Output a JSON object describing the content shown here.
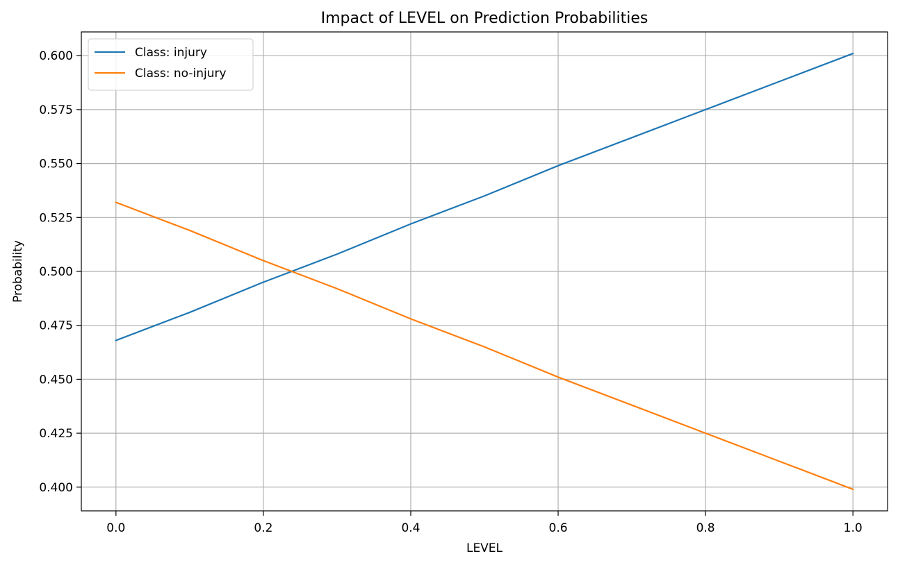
{
  "chart_data": {
    "type": "line",
    "title": "Impact of LEVEL on Prediction Probabilities",
    "xlabel": "LEVEL",
    "ylabel": "Probability",
    "xlim": [
      -0.047,
      1.047
    ],
    "ylim": [
      0.389,
      0.611
    ],
    "xticks": [
      0.0,
      0.2,
      0.4,
      0.6,
      0.8,
      1.0
    ],
    "xtick_labels": [
      "0.0",
      "0.2",
      "0.4",
      "0.6",
      "0.8",
      "1.0"
    ],
    "yticks": [
      0.4,
      0.425,
      0.45,
      0.475,
      0.5,
      0.525,
      0.55,
      0.575,
      0.6
    ],
    "ytick_labels": [
      "0.400",
      "0.425",
      "0.450",
      "0.475",
      "0.500",
      "0.525",
      "0.550",
      "0.575",
      "0.600"
    ],
    "grid": true,
    "legend_position": "top-left",
    "series": [
      {
        "name": "Class: injury",
        "color": "#1f77b4",
        "x": [
          0.0,
          0.1,
          0.2,
          0.3,
          0.4,
          0.5,
          0.6,
          0.7,
          0.8,
          0.9,
          1.0
        ],
        "y": [
          0.468,
          0.481,
          0.495,
          0.508,
          0.522,
          0.535,
          0.549,
          0.562,
          0.575,
          0.588,
          0.601
        ]
      },
      {
        "name": "Class: no-injury",
        "color": "#ff7f0e",
        "x": [
          0.0,
          0.1,
          0.2,
          0.3,
          0.4,
          0.5,
          0.6,
          0.7,
          0.8,
          0.9,
          1.0
        ],
        "y": [
          0.532,
          0.519,
          0.505,
          0.492,
          0.478,
          0.465,
          0.451,
          0.438,
          0.425,
          0.412,
          0.399
        ]
      }
    ]
  }
}
